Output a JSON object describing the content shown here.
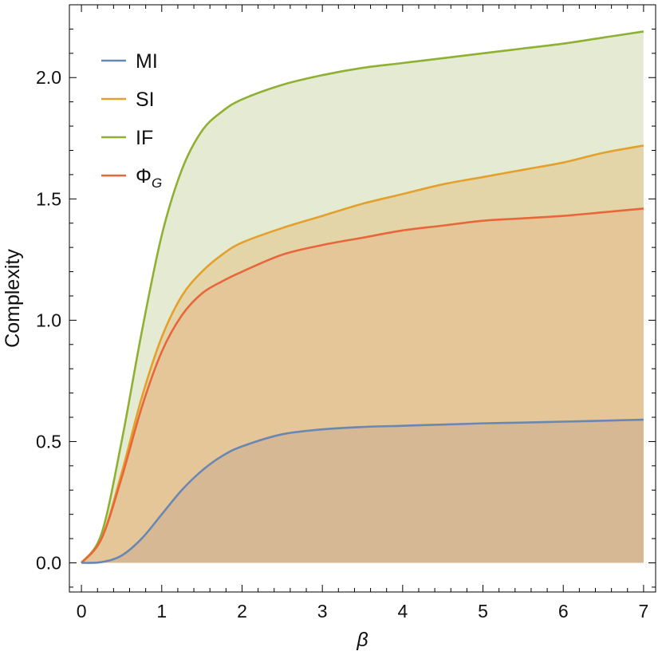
{
  "chart_data": {
    "type": "area",
    "xlabel": "β",
    "ylabel": "Complexity",
    "xlim": [
      -0.15,
      7.15
    ],
    "ylim": [
      -0.12,
      2.3
    ],
    "xticks": [
      "0",
      "1",
      "2",
      "3",
      "4",
      "5",
      "6",
      "7"
    ],
    "yticks": [
      "0.0",
      "0.5",
      "1.0",
      "1.5",
      "2.0"
    ],
    "grid": false,
    "legend_position": "top-left",
    "series": [
      {
        "name": "IF",
        "legend_label": "IF",
        "color": "#8fb032",
        "fill": "#e5ebd2",
        "x": [
          0,
          0.25,
          0.5,
          0.75,
          1,
          1.25,
          1.5,
          1.75,
          2,
          2.5,
          3,
          3.5,
          4,
          4.5,
          5,
          5.5,
          6,
          6.5,
          7
        ],
        "y": [
          0,
          0.12,
          0.5,
          0.95,
          1.35,
          1.62,
          1.78,
          1.86,
          1.91,
          1.97,
          2.01,
          2.04,
          2.06,
          2.08,
          2.1,
          2.12,
          2.14,
          2.165,
          2.19
        ]
      },
      {
        "name": "SI",
        "legend_label": "SI",
        "color": "#e3a02b",
        "fill": "#e3d5a8",
        "x": [
          0,
          0.25,
          0.5,
          0.75,
          1,
          1.25,
          1.5,
          1.75,
          2,
          2.5,
          3,
          3.5,
          4,
          4.5,
          5,
          5.5,
          6,
          6.5,
          7
        ],
        "y": [
          0,
          0.1,
          0.37,
          0.68,
          0.93,
          1.1,
          1.2,
          1.27,
          1.32,
          1.38,
          1.43,
          1.48,
          1.52,
          1.56,
          1.59,
          1.62,
          1.65,
          1.69,
          1.72
        ]
      },
      {
        "name": "ΦG",
        "legend_label": "Φ",
        "legend_subscript": "G",
        "color": "#e8673a",
        "fill": "#e5c698",
        "x": [
          0,
          0.25,
          0.5,
          0.75,
          1,
          1.25,
          1.5,
          1.75,
          2,
          2.5,
          3,
          3.5,
          4,
          4.5,
          5,
          5.5,
          6,
          6.5,
          7
        ],
        "y": [
          0,
          0.1,
          0.35,
          0.64,
          0.87,
          1.02,
          1.11,
          1.16,
          1.2,
          1.27,
          1.31,
          1.34,
          1.37,
          1.39,
          1.41,
          1.42,
          1.43,
          1.445,
          1.46
        ]
      },
      {
        "name": "MI",
        "legend_label": "MI",
        "color": "#6a87b4",
        "fill": "#d6b994",
        "x": [
          0,
          0.25,
          0.5,
          0.75,
          1,
          1.25,
          1.5,
          1.75,
          2,
          2.5,
          3,
          3.5,
          4,
          4.5,
          5,
          5.5,
          6,
          6.5,
          7
        ],
        "y": [
          0,
          0.003,
          0.03,
          0.1,
          0.2,
          0.3,
          0.38,
          0.44,
          0.48,
          0.53,
          0.55,
          0.56,
          0.565,
          0.57,
          0.575,
          0.578,
          0.582,
          0.586,
          0.59
        ]
      }
    ],
    "legend_order": [
      "MI",
      "SI",
      "IF",
      "ΦG"
    ]
  }
}
